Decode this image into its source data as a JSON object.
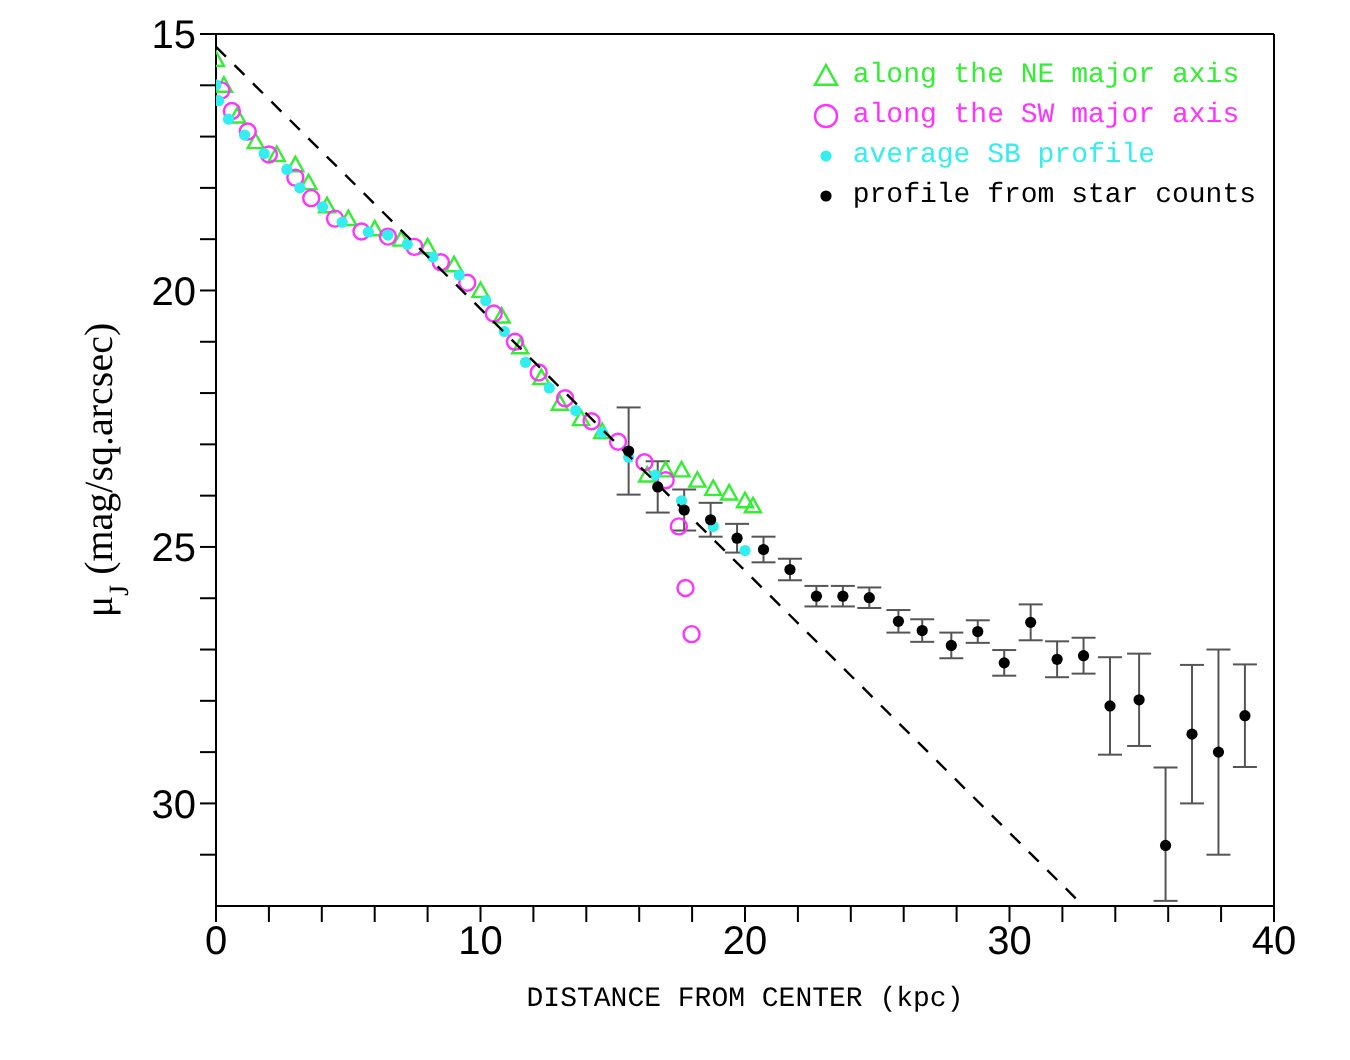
{
  "chart_data": {
    "type": "scatter",
    "xlabel": "DISTANCE FROM CENTER (kpc)",
    "ylabel": "μ$_{J}$ (mag/sq.arcsec)",
    "xlim": [
      0,
      40
    ],
    "xticks": [
      0,
      {
        "value": 2,
        "label": null
      },
      {
        "value": 4,
        "label": null
      },
      {
        "value": 6,
        "label": null
      },
      {
        "value": 8,
        "label": null
      },
      10,
      {
        "value": 12,
        "label": null
      },
      {
        "value": 14,
        "label": null
      },
      {
        "value": 16,
        "label": null
      },
      {
        "value": 18,
        "label": null
      },
      20,
      {
        "value": 22,
        "label": null
      },
      {
        "value": 24,
        "label": null
      },
      {
        "value": 26,
        "label": null
      },
      {
        "value": 28,
        "label": null
      },
      30,
      {
        "value": 32,
        "label": null
      },
      {
        "value": 34,
        "label": null
      },
      {
        "value": 36,
        "label": null
      },
      {
        "value": 38,
        "label": null
      },
      40
    ],
    "ylim": [
      32,
      15
    ],
    "yticks": [
      15,
      {
        "value": 16,
        "label": null
      },
      {
        "value": 17,
        "label": null
      },
      {
        "value": 18,
        "label": null
      },
      {
        "value": 19,
        "label": null
      },
      20,
      {
        "value": 21,
        "label": null
      },
      {
        "value": 22,
        "label": null
      },
      {
        "value": 23,
        "label": null
      },
      {
        "value": 24,
        "label": null
      },
      25,
      {
        "value": 26,
        "label": null
      },
      {
        "value": 27,
        "label": null
      },
      {
        "value": 28,
        "label": null
      },
      {
        "value": 29,
        "label": null
      },
      30,
      {
        "value": 31,
        "label": null
      }
    ],
    "legend": "top right",
    "grid": false,
    "series": [
      {
        "name": "along the NE major axis",
        "color": "#33ee33",
        "marker": "triangle",
        "x": [
          0,
          0.3,
          0.8,
          1.5,
          2.3,
          3,
          3.5,
          4.2,
          5,
          6,
          7,
          8,
          9,
          10,
          10.8,
          11.5,
          12.3,
          13,
          13.8,
          14.6,
          16.3,
          17,
          17.6,
          18.2,
          18.8,
          19.4,
          20,
          20.3
        ],
        "values": [
          15.5,
          16,
          16.6,
          17.1,
          17.35,
          17.55,
          17.9,
          18.35,
          18.6,
          18.8,
          19,
          19.15,
          19.5,
          20,
          20.5,
          21.1,
          21.7,
          22.2,
          22.5,
          22.75,
          23.6,
          23.5,
          23.5,
          23.7,
          23.86,
          23.95,
          24.1,
          24.2
        ]
      },
      {
        "name": "along the SW major axis",
        "color": "#ff33ff",
        "marker": "circle",
        "x": [
          0.2,
          0.6,
          1.2,
          2,
          3,
          3.6,
          4.5,
          5.5,
          6.5,
          7.5,
          8.5,
          9.5,
          10.5,
          11.3,
          12.2,
          13.2,
          14.2,
          15.2,
          16.2,
          17,
          17.5,
          17.75,
          17.98
        ],
        "values": [
          16.1,
          16.5,
          16.9,
          17.35,
          17.8,
          18.2,
          18.6,
          18.85,
          18.95,
          19.15,
          19.45,
          19.85,
          20.45,
          21,
          21.6,
          22.1,
          22.55,
          22.95,
          23.35,
          23.7,
          24.6,
          25.8,
          26.7
        ]
      },
      {
        "name": "average SB profile",
        "color": "#33eeee",
        "marker": "circle",
        "x": [
          0,
          0.1,
          0.47,
          1.08,
          1.82,
          2.68,
          3.17,
          4.03,
          4.77,
          5.76,
          6.5,
          7.23,
          8.2,
          9.2,
          10.2,
          10.9,
          11.7,
          12.6,
          13.6,
          14.6,
          15.6,
          16.6,
          17.6,
          18.8,
          20
        ],
        "values": [
          15.99,
          16.3,
          16.66,
          16.97,
          17.33,
          17.64,
          18,
          18.37,
          18.67,
          18.86,
          18.92,
          19.1,
          19.35,
          19.7,
          20.2,
          20.8,
          21.4,
          21.9,
          22.34,
          22.77,
          23.25,
          23.6,
          24.1,
          24.6,
          25.07
        ]
      },
      {
        "name": "profile from star counts",
        "color": "#000000",
        "marker": "circle",
        "x": [
          15.6,
          16.7,
          17.7,
          18.7,
          19.7,
          20.7,
          21.7,
          22.7,
          23.7,
          24.7,
          25.8,
          26.7,
          27.8,
          28.8,
          29.8,
          30.8,
          31.8,
          32.8,
          33.8,
          34.9,
          35.9,
          36.9,
          37.9,
          38.9
        ],
        "values": [
          23.13,
          23.83,
          24.28,
          24.47,
          24.83,
          25.05,
          25.44,
          25.96,
          25.96,
          25.99,
          26.45,
          26.63,
          26.92,
          26.65,
          27.26,
          26.47,
          27.19,
          27.12,
          28.1,
          27.98,
          30.82,
          28.65,
          29,
          28.29
        ],
        "errors": [
          0.85,
          0.5,
          0.4,
          0.33,
          0.28,
          0.25,
          0.21,
          0.2,
          0.2,
          0.2,
          0.22,
          0.22,
          0.25,
          0.22,
          0.25,
          0.35,
          0.35,
          0.35,
          0.95,
          0.9,
          [
            29.3,
            31.9
          ],
          1.35,
          2,
          1
        ]
      },
      {
        "type": "line",
        "color": "#000000",
        "marker": "none",
        "line_style": "dashed",
        "x": [
          0,
          32.6
        ],
        "values": [
          15.25,
          31.9
        ]
      }
    ]
  }
}
